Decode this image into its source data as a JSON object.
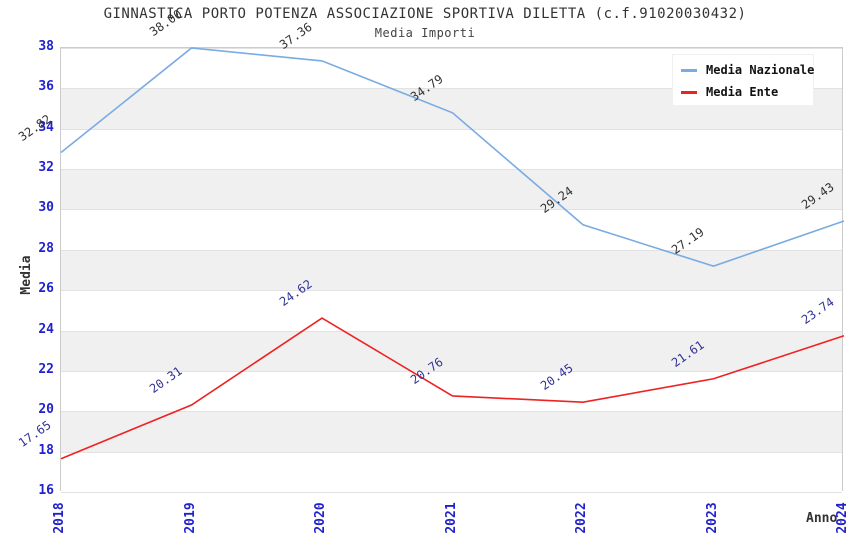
{
  "header": {
    "title": "GINNASTICA PORTO POTENZA ASSOCIAZIONE SPORTIVA DILETTA (c.f.91020030432)",
    "subtitle": "Media Importi"
  },
  "legend": {
    "items": [
      {
        "label": "Media Nazionale",
        "color": "#7aabe3"
      },
      {
        "label": "Media Ente",
        "color": "#ee2222"
      }
    ]
  },
  "chart_data": {
    "type": "line",
    "title": "GINNASTICA PORTO POTENZA ASSOCIAZIONE SPORTIVA DILETTA (c.f.91020030432)",
    "subtitle": "Media Importi",
    "xlabel": "Anno",
    "ylabel": "Media",
    "categories": [
      "2018",
      "2019",
      "2020",
      "2021",
      "2022",
      "2023",
      "2024"
    ],
    "series": [
      {
        "name": "Media Nazionale",
        "color": "#7aabe3",
        "label_color": "#333333",
        "values": [
          32.82,
          38.0,
          37.36,
          34.79,
          29.24,
          27.19,
          29.43
        ]
      },
      {
        "name": "Media Ente",
        "color": "#ee2222",
        "label_color": "#333399",
        "values": [
          17.65,
          20.31,
          24.62,
          20.76,
          20.45,
          21.61,
          23.74
        ]
      }
    ],
    "ylim": [
      16,
      38
    ],
    "ytick_step": 2,
    "grid": true,
    "legend_position": "top-right",
    "band_colors": [
      "#ffffff",
      "#f0f0f0"
    ],
    "tick_color": "#2222cc",
    "value_decimals": 2
  }
}
